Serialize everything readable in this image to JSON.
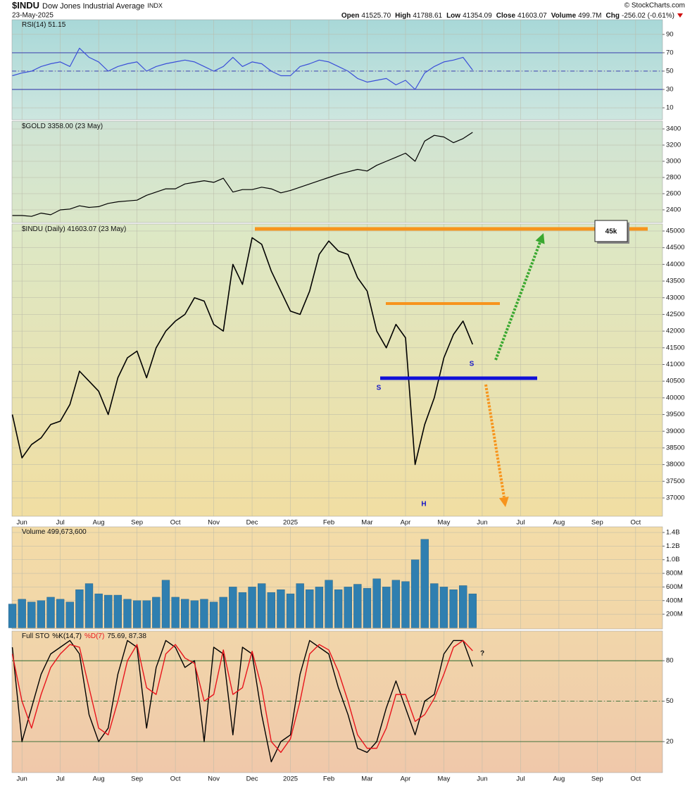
{
  "header": {
    "symbol": "$INDU",
    "name": "Dow Jones Industrial Average",
    "exchange": "INDX",
    "date": "23-May-2025",
    "credit": "© StockCharts.com",
    "quote": [
      {
        "label": "Open",
        "value": "41525.70"
      },
      {
        "label": "High",
        "value": "41788.61"
      },
      {
        "label": "Low",
        "value": "41354.09"
      },
      {
        "label": "Close",
        "value": "41603.07"
      },
      {
        "label": "Volume",
        "value": "499.7M"
      },
      {
        "label": "Chg",
        "value": "-256.02 (-0.61%)"
      }
    ]
  },
  "chart_data": [
    {
      "type": "line",
      "title": "RSI(14) 51.15",
      "color": "#3b4fd8",
      "x": [
        5.75,
        6,
        6.25,
        6.5,
        6.75,
        7,
        7.25,
        7.5,
        7.75,
        8,
        8.25,
        8.5,
        8.75,
        9,
        9.25,
        9.5,
        9.75,
        10,
        10.25,
        10.5,
        10.75,
        11,
        11.25,
        11.5,
        11.75,
        12,
        12.25,
        12.5,
        12.75,
        13,
        13.25,
        13.5,
        13.75,
        14,
        14.25,
        14.5,
        14.75,
        15,
        15.25,
        15.5,
        15.75,
        16,
        16.25,
        16.5,
        16.75,
        17,
        17.25,
        17.5,
        17.75
      ],
      "values": [
        45,
        48,
        50,
        55,
        58,
        60,
        55,
        75,
        65,
        60,
        50,
        55,
        58,
        60,
        50,
        55,
        58,
        60,
        62,
        60,
        55,
        50,
        55,
        65,
        55,
        60,
        58,
        50,
        45,
        45,
        55,
        58,
        62,
        60,
        55,
        50,
        42,
        38,
        40,
        42,
        35,
        40,
        30,
        48,
        55,
        60,
        62,
        65,
        51.15
      ],
      "xlim": [
        5.74,
        22.7
      ],
      "ylim": [
        -3,
        106
      ],
      "yticks": [
        90,
        70,
        50,
        30,
        10
      ],
      "grid": true,
      "levels": [
        {
          "value": 70,
          "style": "solid"
        },
        {
          "value": 50,
          "style": "dashdot"
        },
        {
          "value": 30,
          "style": "solid"
        }
      ],
      "level_color": "#2a2aa8"
    },
    {
      "type": "line",
      "title": "$GOLD 3358.00 (23 May)",
      "color": "#000000",
      "x": [
        5.75,
        6,
        6.25,
        6.5,
        6.75,
        7,
        7.25,
        7.5,
        7.75,
        8,
        8.25,
        8.5,
        8.75,
        9,
        9.25,
        9.5,
        9.75,
        10,
        10.25,
        10.5,
        10.75,
        11,
        11.25,
        11.5,
        11.75,
        12,
        12.25,
        12.5,
        12.75,
        13,
        13.25,
        13.5,
        13.75,
        14,
        14.25,
        14.5,
        14.75,
        15,
        15.25,
        15.5,
        15.75,
        16,
        16.25,
        16.5,
        16.75,
        17,
        17.25,
        17.5,
        17.75
      ],
      "values": [
        2330,
        2330,
        2320,
        2360,
        2340,
        2400,
        2410,
        2450,
        2430,
        2440,
        2480,
        2500,
        2510,
        2520,
        2580,
        2620,
        2660,
        2660,
        2720,
        2740,
        2760,
        2740,
        2790,
        2620,
        2650,
        2650,
        2680,
        2660,
        2610,
        2640,
        2680,
        2720,
        2760,
        2800,
        2840,
        2870,
        2900,
        2880,
        2950,
        3000,
        3050,
        3100,
        3000,
        3250,
        3320,
        3300,
        3230,
        3280,
        3358
      ],
      "xlim": [
        5.74,
        22.7
      ],
      "ylim": [
        2243,
        3496
      ],
      "yticks": [
        3400,
        3200,
        3000,
        2800,
        2600,
        2400
      ],
      "grid": true
    },
    {
      "type": "line",
      "title": "$INDU (Daily) 41603.07 (23 May)",
      "color": "#000000",
      "x": [
        5.75,
        6,
        6.25,
        6.5,
        6.75,
        7,
        7.25,
        7.5,
        7.75,
        8,
        8.25,
        8.5,
        8.75,
        9,
        9.25,
        9.5,
        9.75,
        10,
        10.25,
        10.5,
        10.75,
        11,
        11.25,
        11.5,
        11.75,
        12,
        12.25,
        12.5,
        12.75,
        13,
        13.25,
        13.5,
        13.75,
        14,
        14.25,
        14.5,
        14.75,
        15,
        15.25,
        15.5,
        15.75,
        16,
        16.25,
        16.5,
        16.75,
        17,
        17.25,
        17.5,
        17.75
      ],
      "values": [
        39500,
        38200,
        38600,
        38800,
        39200,
        39300,
        39800,
        40800,
        40500,
        40200,
        39500,
        40600,
        41200,
        41400,
        40600,
        41500,
        42000,
        42300,
        42500,
        43000,
        42900,
        42200,
        42000,
        44000,
        43400,
        44800,
        44600,
        43800,
        43200,
        42600,
        42500,
        43200,
        44300,
        44700,
        44400,
        44300,
        43600,
        43200,
        42000,
        41500,
        42200,
        41800,
        38000,
        39200,
        40000,
        41200,
        41900,
        42300,
        41603.07
      ],
      "xlim": [
        5.74,
        22.7
      ],
      "ylim": [
        36451,
        45211
      ],
      "yticks": [
        45000,
        44500,
        44000,
        43500,
        43000,
        42500,
        42000,
        41500,
        41000,
        40500,
        40000,
        39500,
        39000,
        38500,
        38000,
        37500,
        37000
      ],
      "grid": true,
      "xticks": [
        {
          "value": 6,
          "label": "Jun"
        },
        {
          "value": 7,
          "label": "Jul"
        },
        {
          "value": 8,
          "label": "Aug"
        },
        {
          "value": 9,
          "label": "Sep"
        },
        {
          "value": 10,
          "label": "Oct"
        },
        {
          "value": 11,
          "label": "Nov"
        },
        {
          "value": 12,
          "label": "Dec"
        },
        {
          "value": 13,
          "label": "2025"
        },
        {
          "value": 14,
          "label": "Feb"
        },
        {
          "value": 15,
          "label": "Mar"
        },
        {
          "value": 16,
          "label": "Apr"
        },
        {
          "value": 17,
          "label": "May"
        },
        {
          "value": 18,
          "label": "Jun"
        },
        {
          "value": 19,
          "label": "Jul"
        },
        {
          "value": 20,
          "label": "Aug"
        },
        {
          "value": 21,
          "label": "Sep"
        },
        {
          "value": 22,
          "label": "Oct"
        }
      ],
      "annotations": [
        "45k",
        "S",
        "S",
        "H"
      ]
    },
    {
      "type": "bar",
      "title": "Volume 499,673,600",
      "color": "#2f7fb0",
      "x": [
        5.75,
        6,
        6.25,
        6.5,
        6.75,
        7,
        7.25,
        7.5,
        7.75,
        8,
        8.25,
        8.5,
        8.75,
        9,
        9.25,
        9.5,
        9.75,
        10,
        10.25,
        10.5,
        10.75,
        11,
        11.25,
        11.5,
        11.75,
        12,
        12.25,
        12.5,
        12.75,
        13,
        13.25,
        13.5,
        13.75,
        14,
        14.25,
        14.5,
        14.75,
        15,
        15.25,
        15.5,
        15.75,
        16,
        16.25,
        16.5,
        16.75,
        17,
        17.25,
        17.5,
        17.75
      ],
      "values": [
        350000000,
        420000000,
        380000000,
        400000000,
        450000000,
        420000000,
        380000000,
        560000000,
        650000000,
        500000000,
        480000000,
        480000000,
        420000000,
        400000000,
        400000000,
        450000000,
        700000000,
        450000000,
        420000000,
        400000000,
        420000000,
        380000000,
        450000000,
        600000000,
        520000000,
        600000000,
        650000000,
        520000000,
        560000000,
        500000000,
        650000000,
        560000000,
        600000000,
        700000000,
        560000000,
        600000000,
        640000000,
        580000000,
        720000000,
        600000000,
        700000000,
        680000000,
        1000000000,
        1300000000,
        650000000,
        600000000,
        560000000,
        620000000,
        499673600
      ],
      "xlim": [
        5.74,
        22.7
      ],
      "ylim": [
        -16000000,
        1483000000
      ],
      "grid": true,
      "yticks": [
        {
          "value": 1400000000,
          "label": "1.4B"
        },
        {
          "value": 1200000000,
          "label": "1.2B"
        },
        {
          "value": 1000000000,
          "label": "1.0B"
        },
        {
          "value": 800000000,
          "label": "800M"
        },
        {
          "value": 600000000,
          "label": "600M"
        },
        {
          "value": 400000000,
          "label": "400M"
        },
        {
          "value": 200000000,
          "label": "200M"
        }
      ]
    },
    {
      "type": "line",
      "title": "Full STO",
      "last_values": "75.69, 87.38",
      "x": [
        5.75,
        6,
        6.25,
        6.5,
        6.75,
        7,
        7.25,
        7.5,
        7.75,
        8,
        8.25,
        8.5,
        8.75,
        9,
        9.25,
        9.5,
        9.75,
        10,
        10.25,
        10.5,
        10.75,
        11,
        11.25,
        11.5,
        11.75,
        12,
        12.25,
        12.5,
        12.75,
        13,
        13.25,
        13.5,
        13.75,
        14,
        14.25,
        14.5,
        14.75,
        15,
        15.25,
        15.5,
        15.75,
        16,
        16.25,
        16.5,
        16.75,
        17,
        17.25,
        17.5,
        17.75
      ],
      "series": [
        {
          "name": "%K(14,7)",
          "color": "#000000",
          "values": [
            90,
            20,
            45,
            70,
            85,
            90,
            95,
            85,
            40,
            20,
            30,
            70,
            95,
            90,
            30,
            75,
            95,
            90,
            75,
            80,
            20,
            90,
            85,
            25,
            90,
            85,
            40,
            5,
            20,
            25,
            70,
            95,
            90,
            85,
            60,
            40,
            15,
            12,
            20,
            45,
            65,
            45,
            25,
            50,
            55,
            85,
            95,
            95,
            75.69
          ]
        },
        {
          "name": "%D(7)",
          "color": "#e8141c",
          "values": [
            85,
            50,
            30,
            55,
            75,
            85,
            92,
            90,
            60,
            30,
            25,
            50,
            80,
            92,
            60,
            55,
            85,
            92,
            82,
            78,
            50,
            55,
            88,
            55,
            60,
            87,
            60,
            20,
            12,
            22,
            50,
            85,
            92,
            88,
            72,
            50,
            25,
            15,
            15,
            30,
            55,
            55,
            35,
            40,
            52,
            70,
            90,
            95,
            87.38
          ]
        }
      ],
      "xlim": [
        5.74,
        22.7
      ],
      "ylim": [
        -3,
        102
      ],
      "yticks": [
        80,
        50,
        20
      ],
      "grid": true,
      "levels": [
        {
          "value": 80,
          "style": "solid"
        },
        {
          "value": 50,
          "style": "dashdot"
        },
        {
          "value": 20,
          "style": "solid"
        }
      ],
      "level_color": "#2f6a2f",
      "xticks": [
        {
          "value": 6,
          "label": "Jun"
        },
        {
          "value": 7,
          "label": "Jul"
        },
        {
          "value": 8,
          "label": "Aug"
        },
        {
          "value": 9,
          "label": "Sep"
        },
        {
          "value": 10,
          "label": "Oct"
        },
        {
          "value": 11,
          "label": "Nov"
        },
        {
          "value": 12,
          "label": "Dec"
        },
        {
          "value": 13,
          "label": "2025"
        },
        {
          "value": 14,
          "label": "Feb"
        },
        {
          "value": 15,
          "label": "Mar"
        },
        {
          "value": 16,
          "label": "Apr"
        },
        {
          "value": 17,
          "label": "May"
        },
        {
          "value": 18,
          "label": "Jun"
        },
        {
          "value": 19,
          "label": "Jul"
        },
        {
          "value": 20,
          "label": "Aug"
        },
        {
          "value": 21,
          "label": "Sep"
        },
        {
          "value": 22,
          "label": "Oct"
        }
      ],
      "annotations": [
        "?"
      ]
    }
  ]
}
